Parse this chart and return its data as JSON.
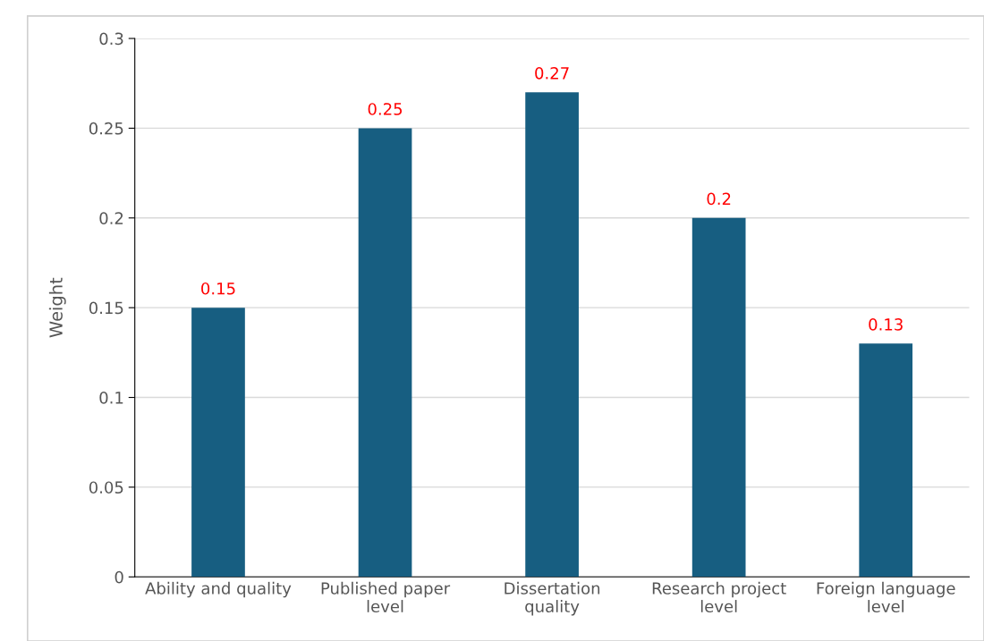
{
  "chart_data": {
    "type": "bar",
    "ylabel": "Weight",
    "categories": [
      "Ability and quality",
      "Published paper\nlevel",
      "Dissertation\nquality",
      "Research project\nlevel",
      "Foreign language\nlevel"
    ],
    "series": [
      {
        "color": "#175e81",
        "values": [
          0.15,
          0.25,
          0.27,
          0.2,
          0.13
        ]
      }
    ],
    "ylim": [
      0,
      0.3
    ],
    "yticks": [
      0,
      0.05,
      0.1,
      0.15,
      0.2,
      0.25,
      0.3
    ],
    "grid": "y",
    "data_labels": true
  }
}
